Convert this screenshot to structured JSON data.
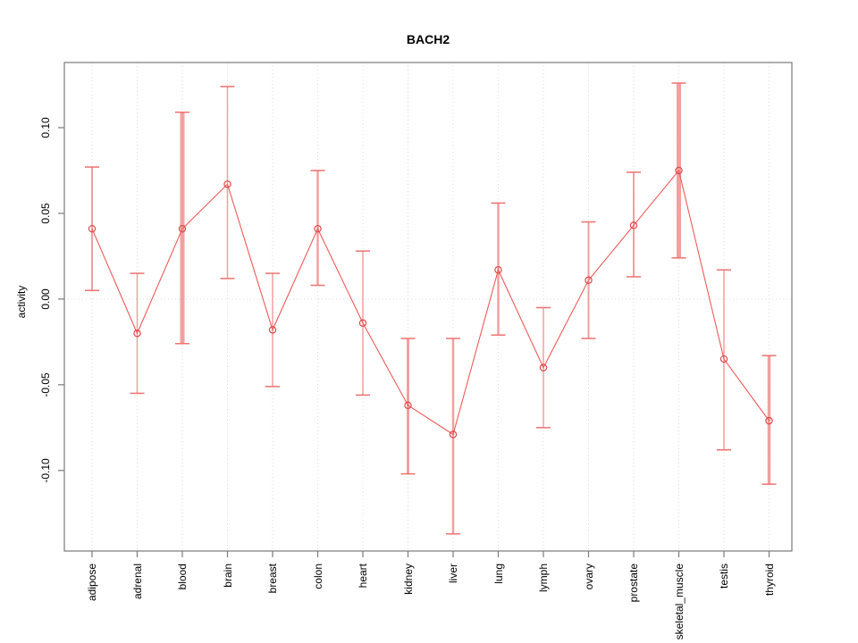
{
  "chart_data": {
    "type": "line",
    "title": "BACH2",
    "xlabel": "",
    "ylabel": "activity",
    "categories": [
      "adipose",
      "adrenal",
      "blood",
      "brain",
      "breast",
      "colon",
      "heart",
      "kidney",
      "liver",
      "lung",
      "lymph",
      "ovary",
      "prostate",
      "skeletal_muscle",
      "testis",
      "thyroid"
    ],
    "series": [
      {
        "name": "activity",
        "values": [
          0.041,
          -0.02,
          0.041,
          0.067,
          -0.018,
          0.041,
          -0.014,
          -0.062,
          -0.079,
          0.017,
          -0.04,
          0.011,
          0.043,
          0.075,
          -0.035,
          -0.071
        ],
        "ci_upper": [
          0.077,
          0.015,
          0.109,
          0.124,
          0.015,
          0.075,
          0.028,
          -0.023,
          -0.023,
          0.056,
          -0.005,
          0.045,
          0.074,
          0.126,
          0.017,
          -0.033
        ],
        "ci_lower": [
          0.005,
          -0.055,
          -0.026,
          0.012,
          -0.051,
          0.008,
          -0.056,
          -0.102,
          -0.137,
          -0.021,
          -0.075,
          -0.023,
          0.013,
          0.024,
          -0.088,
          -0.108
        ]
      }
    ],
    "error_bar_widths": [
      2,
      1.5,
      5,
      1.5,
      1.5,
      2.5,
      1.5,
      3,
      2.5,
      2.5,
      1.5,
      2,
      2,
      5,
      1.5,
      3.5
    ],
    "yticks": [
      0.1,
      0.05,
      0.0,
      -0.05,
      -0.1
    ],
    "ytick_labels": [
      "0.10",
      "0.05",
      "0.00",
      "-0.05",
      "-0.10"
    ],
    "ylim": [
      -0.147,
      0.138
    ],
    "grid": "vertical dotted gridline per category plus dotted horizontal line at zero",
    "legend": "none",
    "point_style": "open-circle",
    "colors": {
      "point": "#e04848",
      "line": "#ee5a5a",
      "error_bar": "#f19090",
      "error_cap": "#ee6a6a",
      "grid": "#dedede",
      "axis": "#7a7a7a",
      "text": "#000000"
    }
  }
}
